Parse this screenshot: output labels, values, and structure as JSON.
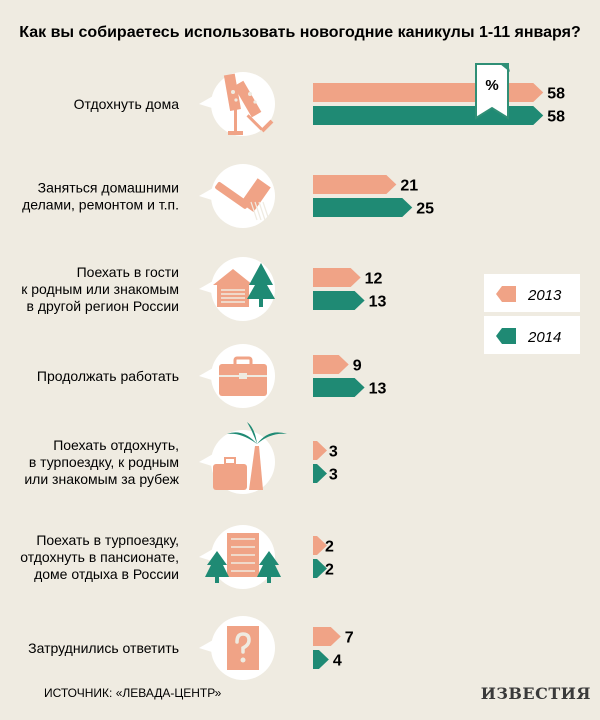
{
  "chart_data": {
    "type": "bar",
    "title": "Как вы собираетесь использовать новогодние каникулы 1-11 января?",
    "unit_label": "%",
    "categories": [
      {
        "lines": [
          "Отдохнуть дома"
        ],
        "icon": "champagne-glasses-icon"
      },
      {
        "lines": [
          "Заняться домашними",
          "делами, ремонтом и т.п."
        ],
        "icon": "paint-brush-icon"
      },
      {
        "lines": [
          "Поехать в гости",
          "к родным или знакомым",
          "в другой регион России"
        ],
        "icon": "house-tree-icon"
      },
      {
        "lines": [
          "Продолжать работать"
        ],
        "icon": "briefcase-icon"
      },
      {
        "lines": [
          "Поехать отдохнуть,",
          "в турпоездку, к родным",
          "или знакомым за рубеж"
        ],
        "icon": "suitcase-palm-icon"
      },
      {
        "lines": [
          "Поехать в турпоездку,",
          "отдохнуть в пансионате,",
          "доме отдыха в России"
        ],
        "icon": "hotel-trees-icon"
      },
      {
        "lines": [
          "Затруднились ответить"
        ],
        "icon": "question-icon"
      }
    ],
    "series": [
      {
        "name": "2013",
        "color": "#f0a386",
        "values": [
          58,
          21,
          12,
          9,
          3,
          2,
          7
        ]
      },
      {
        "name": "2014",
        "color": "#1f8a74",
        "values": [
          58,
          25,
          13,
          13,
          3,
          2,
          4
        ]
      }
    ],
    "legend_position": "right",
    "source": "ИСТОЧНИК: «ЛЕВАДА-ЦЕНТР»",
    "logo": "ИЗВЕСТИЯ"
  }
}
